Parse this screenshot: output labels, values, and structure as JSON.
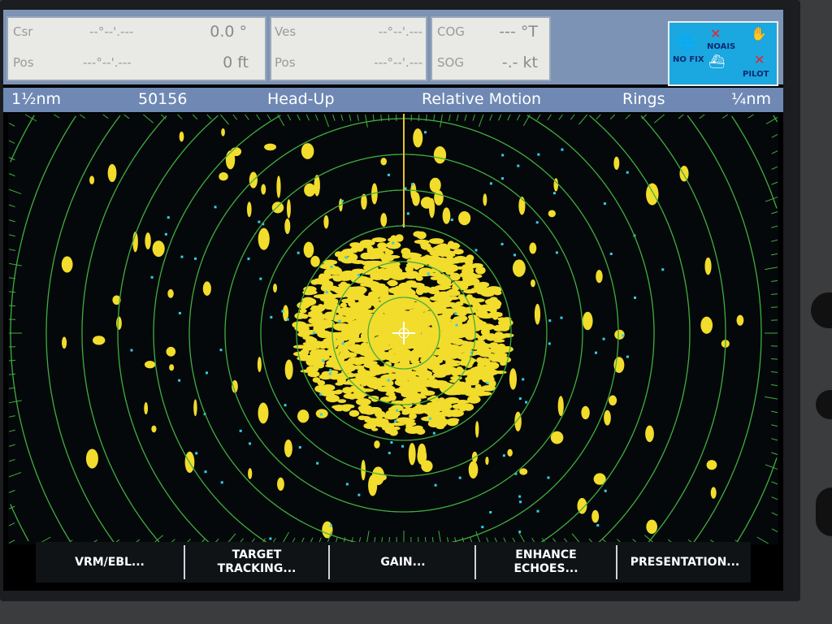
{
  "data_panel": {
    "cursor": {
      "label": "Csr",
      "position": "--°--'.---",
      "bearing": "0.0 °"
    },
    "cursor_pos": {
      "label": "Pos",
      "position": "---°--'.---",
      "range": "0 ft"
    },
    "vessel": {
      "label": "Ves",
      "position": "--°--'.---"
    },
    "vessel_pos": {
      "label": "Pos",
      "position": "---°--'.---"
    },
    "cog": {
      "label": "COG",
      "value": "--- °T"
    },
    "sog": {
      "label": "SOG",
      "value": "-.- kt"
    }
  },
  "alerts": {
    "gps": "NO FIX",
    "ais": "NOAIS",
    "autopilot": "PILOT"
  },
  "status_bar": {
    "range": "1½nm",
    "gain_value": "50156",
    "orientation": "Head-Up",
    "motion": "Relative Motion",
    "rings_label": "Rings",
    "ring_interval": "¼nm"
  },
  "softkeys": [
    {
      "label": "VRM/EBL..."
    },
    {
      "label": "TARGET TRACKING..."
    },
    {
      "label": "GAIN..."
    },
    {
      "label": "ENHANCE ECHOES..."
    },
    {
      "label": "PRESENTATION..."
    }
  ],
  "colors": {
    "echo": "#f2dc2c",
    "ring": "#3fae3f",
    "heading_line": "#e7c22a",
    "status_bar": "#6f89b4",
    "alerts_bg": "#1ba7e0"
  }
}
